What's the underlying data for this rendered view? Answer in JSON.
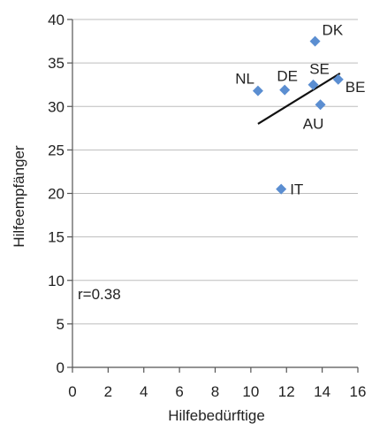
{
  "chart_data": {
    "type": "scatter",
    "title": "",
    "xlabel": "Hilfebedürftige",
    "ylabel": "Hilfeempfänger",
    "xlim": [
      0,
      16
    ],
    "ylim": [
      0,
      40
    ],
    "x_ticks": [
      0,
      2,
      4,
      6,
      8,
      10,
      12,
      14,
      16
    ],
    "y_ticks": [
      0,
      5,
      10,
      15,
      20,
      25,
      30,
      35,
      40
    ],
    "grid": "horizontal",
    "marker_color": "#5b8ed1",
    "points": [
      {
        "label": "DK",
        "x": 13.6,
        "y": 37.5
      },
      {
        "label": "NL",
        "x": 10.4,
        "y": 31.8
      },
      {
        "label": "DE",
        "x": 11.9,
        "y": 31.9
      },
      {
        "label": "SE",
        "x": 13.5,
        "y": 32.5
      },
      {
        "label": "BE",
        "x": 14.9,
        "y": 33.1
      },
      {
        "label": "AU",
        "x": 13.9,
        "y": 30.2
      },
      {
        "label": "IT",
        "x": 11.7,
        "y": 20.5
      }
    ],
    "trendline": {
      "x": [
        10.4,
        15.0
      ],
      "y": [
        28.0,
        33.8
      ]
    },
    "annotation": "r=0.38"
  }
}
